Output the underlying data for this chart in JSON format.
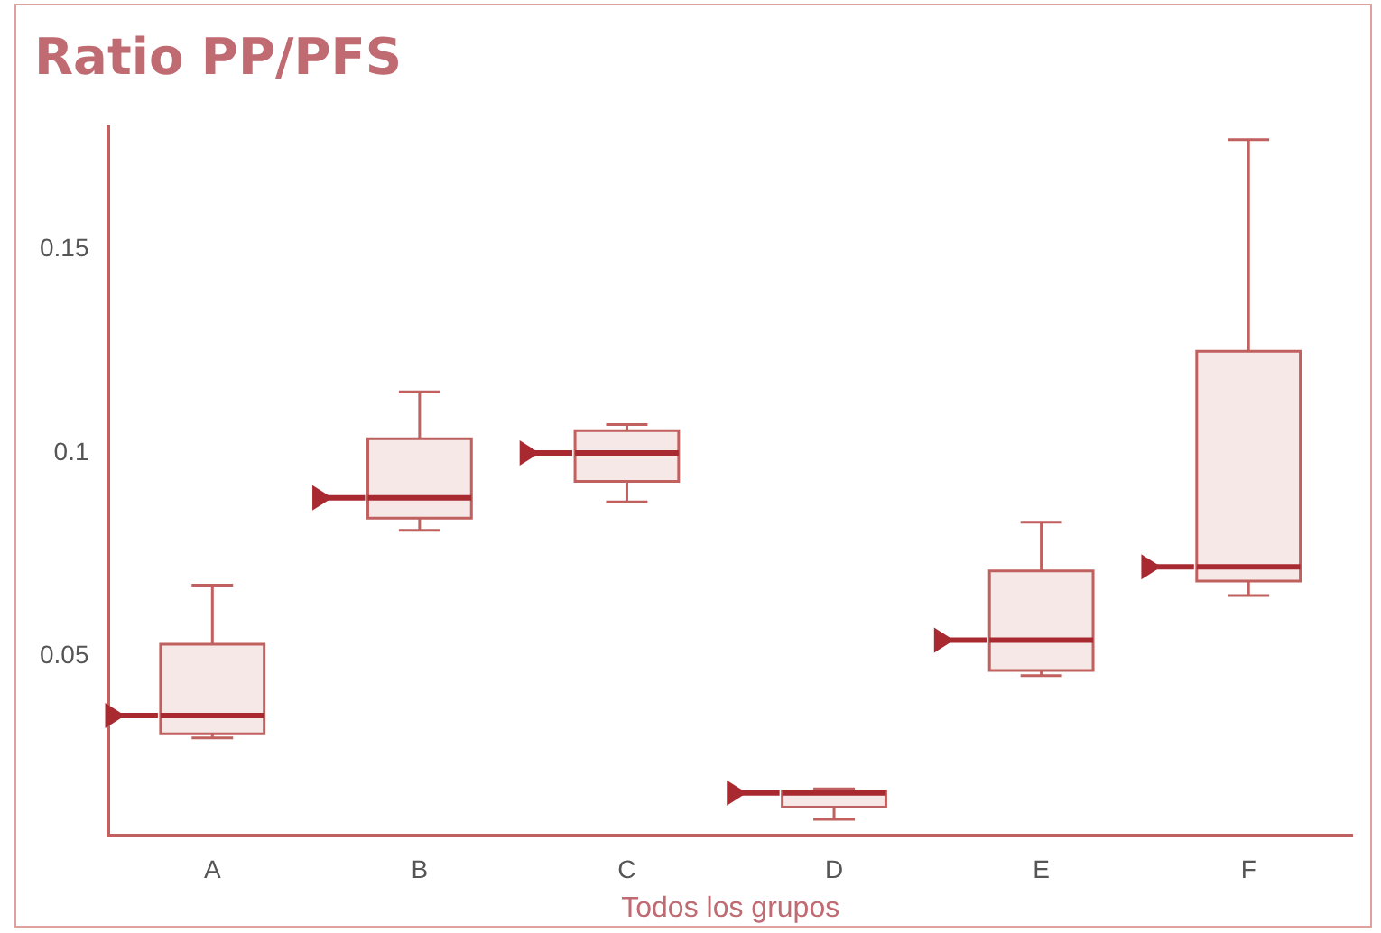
{
  "chart_data": {
    "type": "box",
    "title": "Ratio PP/PFS",
    "xlabel": "Todos los grupos",
    "categories": [
      "A",
      "B",
      "C",
      "D",
      "E",
      "F"
    ],
    "boxes": [
      {
        "low": 0.03,
        "q1": 0.031,
        "median": 0.0355,
        "q3": 0.053,
        "high": 0.0675
      },
      {
        "low": 0.081,
        "q1": 0.084,
        "median": 0.089,
        "q3": 0.1035,
        "high": 0.115
      },
      {
        "low": 0.088,
        "q1": 0.093,
        "median": 0.1,
        "q3": 0.1055,
        "high": 0.107
      },
      {
        "low": 0.01,
        "q1": 0.013,
        "median": 0.0165,
        "q3": 0.017,
        "high": 0.0175
      },
      {
        "low": 0.0453,
        "q1": 0.0466,
        "median": 0.054,
        "q3": 0.071,
        "high": 0.083
      },
      {
        "low": 0.065,
        "q1": 0.0685,
        "median": 0.072,
        "q3": 0.125,
        "high": 0.177
      }
    ],
    "color": "#f7e8e8",
    "ylim": [
      0.006,
      0.18
    ],
    "yticks": [
      0.05,
      0.1,
      0.15
    ],
    "grid": false
  }
}
